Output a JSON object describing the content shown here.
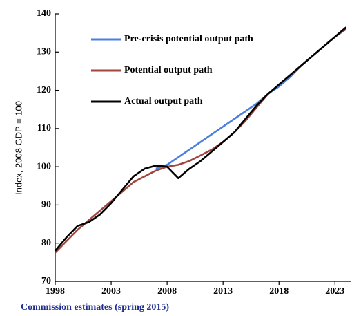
{
  "chart_data": {
    "type": "line",
    "y_label": "Index, 2008 GDP = 100",
    "footnote": "Commission estimates (spring 2015)",
    "x": [
      1998,
      1999,
      2000,
      2001,
      2002,
      2003,
      2004,
      2005,
      2006,
      2007,
      2008,
      2009,
      2010,
      2011,
      2012,
      2013,
      2014,
      2015,
      2016,
      2017,
      2018,
      2019,
      2020,
      2021,
      2022,
      2023,
      2024
    ],
    "series": [
      {
        "name": "Pre-crisis potential output path",
        "color": "#4a7fe0",
        "values": [
          null,
          null,
          null,
          null,
          null,
          null,
          null,
          null,
          null,
          99.5,
          100.5,
          102.5,
          104.5,
          106.5,
          108.5,
          110.5,
          112.5,
          114.5,
          116.5,
          119,
          121,
          123.5,
          126.5,
          129,
          131.5,
          134,
          136.5
        ]
      },
      {
        "name": "Potential output path",
        "color": "#a0463c",
        "values": [
          77.5,
          80.5,
          83.5,
          86,
          88.5,
          91,
          93.5,
          96,
          97.5,
          99,
          100,
          100.5,
          101.5,
          103,
          104.5,
          106.5,
          109,
          112,
          115.5,
          119,
          121.5,
          124,
          126.5,
          129,
          131.5,
          134,
          136
        ]
      },
      {
        "name": "Actual output path",
        "color": "#000000",
        "values": [
          78,
          81.5,
          84.5,
          85.5,
          87.5,
          90.5,
          94,
          97.5,
          99.5,
          100.3,
          100,
          97,
          99.5,
          101.5,
          104,
          106.5,
          109,
          112.5,
          116,
          119,
          121.5,
          124,
          126.5,
          129,
          131.5,
          134,
          136.5
        ]
      }
    ],
    "xlim": [
      1998,
      2024.4
    ],
    "xticks": [
      1998,
      2003,
      2008,
      2013,
      2018,
      2023
    ],
    "ylim": [
      70,
      140
    ],
    "yticks": [
      70,
      80,
      90,
      100,
      110,
      120,
      130,
      140
    ]
  }
}
